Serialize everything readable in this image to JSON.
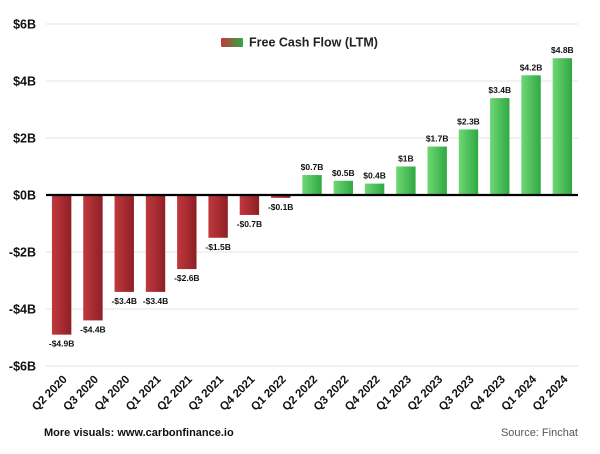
{
  "chart_data": {
    "type": "bar",
    "title": "",
    "xlabel": "",
    "ylabel": "",
    "ylim": [
      -6,
      6
    ],
    "yticks": [
      -6,
      -4,
      -2,
      0,
      2,
      4,
      6
    ],
    "ytick_labels": [
      "-$6B",
      "-$4B",
      "-$2B",
      "$0B",
      "$2B",
      "$4B",
      "$6B"
    ],
    "grid": true,
    "legend_position": "top-center",
    "categories": [
      "Q2 2020",
      "Q3 2020",
      "Q4 2020",
      "Q1 2021",
      "Q2 2021",
      "Q3 2021",
      "Q4 2021",
      "Q1 2022",
      "Q2 2022",
      "Q3 2022",
      "Q4 2022",
      "Q1 2023",
      "Q2 2023",
      "Q3 2023",
      "Q4 2023",
      "Q1 2024",
      "Q2 2024"
    ],
    "series": [
      {
        "name": "Free Cash Flow (LTM)",
        "values": [
          -4.9,
          -4.4,
          -3.4,
          -3.4,
          -2.6,
          -1.5,
          -0.7,
          -0.1,
          0.7,
          0.5,
          0.4,
          1.0,
          1.7,
          2.3,
          3.4,
          4.2,
          4.8
        ],
        "labels": [
          "-$4.9B",
          "-$4.4B",
          "-$3.4B",
          "-$3.4B",
          "-$2.6B",
          "-$1.5B",
          "-$0.7B",
          "-$0.1B",
          "$0.7B",
          "$0.5B",
          "$0.4B",
          "$1B",
          "$1.7B",
          "$2.3B",
          "$3.4B",
          "$4.2B",
          "$4.8B"
        ]
      }
    ],
    "colors": {
      "negative": "#c0393e",
      "negative_dark": "#8e1f25",
      "positive": "#6fd873",
      "positive_dark": "#2fa844",
      "grid": "#e6e6e6",
      "zero_line": "#000000"
    }
  },
  "footer": {
    "left": "More visuals: www.carbonfinance.io",
    "right": "Source: Finchat"
  }
}
